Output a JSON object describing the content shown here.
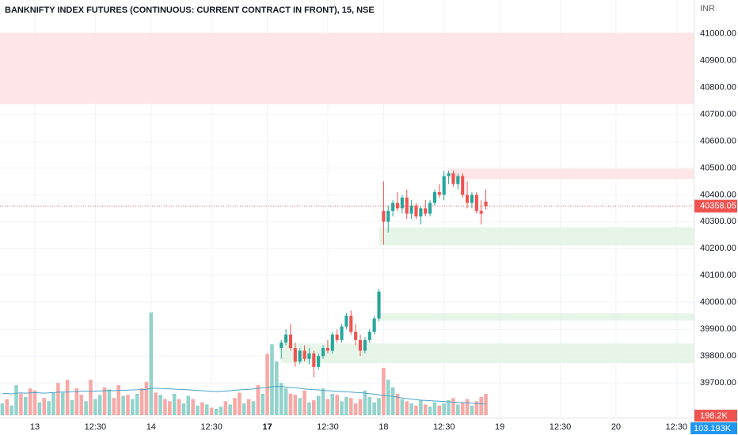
{
  "chart_data": {
    "type": "candlestick",
    "title": "BANKNIFTY INDEX FUTURES (CONTINUOUS: CURRENT CONTRACT IN FRONT), 15, NSE",
    "currency": "INR",
    "ylim": [
      39580,
      41125
    ],
    "yticks": [
      {
        "value": 41000,
        "label": "41000.00"
      },
      {
        "value": 40900,
        "label": "40900.00"
      },
      {
        "value": 40800,
        "label": "40800.00"
      },
      {
        "value": 40700,
        "label": "40700.00"
      },
      {
        "value": 40600,
        "label": "40600.00"
      },
      {
        "value": 40500,
        "label": "40500.00"
      },
      {
        "value": 40400,
        "label": "40400.00"
      },
      {
        "value": 40300,
        "label": "40300.00"
      },
      {
        "value": 40200,
        "label": "40200.00"
      },
      {
        "value": 40100,
        "label": "40100.00"
      },
      {
        "value": 40000,
        "label": "40000.00"
      },
      {
        "value": 39900,
        "label": "39900.00"
      },
      {
        "value": 39800,
        "label": "39800.00"
      },
      {
        "value": 39700,
        "label": "39700.00"
      }
    ],
    "xlim": [
      -0.5,
      148.7
    ],
    "xticks": [
      {
        "value": 7,
        "label": "13"
      },
      {
        "value": 20,
        "label": "12:30"
      },
      {
        "value": 32,
        "label": "14"
      },
      {
        "value": 45,
        "label": "12:30"
      },
      {
        "value": 57,
        "label": "17"
      },
      {
        "value": 70,
        "label": "12:30"
      },
      {
        "value": 82,
        "label": "18"
      },
      {
        "value": 95,
        "label": "12:30"
      },
      {
        "value": 107,
        "label": "19"
      },
      {
        "value": 120,
        "label": "12:30"
      },
      {
        "value": 132,
        "label": "20"
      },
      {
        "value": 145,
        "label": "12:30"
      }
    ],
    "grid": true,
    "up_color": "#26a69a",
    "down_color": "#ef5350",
    "candle_start": 60,
    "candles": {
      "open": [
        39830,
        39850,
        39880,
        39830,
        39780,
        39820,
        39790,
        39810,
        39760,
        39800,
        39830,
        39820,
        39880,
        39860,
        39910,
        39950,
        39890,
        39860,
        39820,
        39860,
        39890,
        39940,
        40340,
        40300,
        40340,
        40370,
        40350,
        40390,
        40330,
        40360,
        40320,
        40350,
        40330,
        40370,
        40410,
        40400,
        40470,
        40480,
        40440,
        40470,
        40400,
        40370,
        40400,
        40340,
        40375
      ],
      "high": [
        39860,
        39900,
        39920,
        39850,
        39830,
        39840,
        39830,
        39820,
        39810,
        39840,
        39860,
        39890,
        39900,
        39920,
        39960,
        39970,
        39920,
        39880,
        39870,
        39900,
        39950,
        40050,
        40450,
        40360,
        40380,
        40410,
        40400,
        40420,
        40380,
        40370,
        40360,
        40380,
        40380,
        40420,
        40440,
        40490,
        40490,
        40490,
        40480,
        40480,
        40450,
        40410,
        40410,
        40380,
        40420
      ],
      "low": [
        39790,
        39840,
        39820,
        39760,
        39770,
        39780,
        39770,
        39720,
        39750,
        39790,
        39810,
        39810,
        39850,
        39850,
        39900,
        39880,
        39840,
        39800,
        39810,
        39850,
        39880,
        39930,
        40215,
        40260,
        40320,
        40340,
        40330,
        40310,
        40310,
        40310,
        40290,
        40320,
        40320,
        40360,
        40390,
        40380,
        40440,
        40430,
        40420,
        40390,
        40350,
        40350,
        40330,
        40290,
        40345
      ],
      "close": [
        39850,
        39880,
        39830,
        39780,
        39820,
        39790,
        39810,
        39760,
        39800,
        39830,
        39820,
        39880,
        39860,
        39910,
        39950,
        39890,
        39860,
        39820,
        39860,
        39890,
        39940,
        40040,
        40300,
        40340,
        40370,
        40350,
        40390,
        40330,
        40360,
        40320,
        40350,
        40330,
        40370,
        40410,
        40400,
        40470,
        40480,
        40440,
        40470,
        40400,
        40370,
        40400,
        40340,
        40330,
        40358.05
      ]
    },
    "last_price": {
      "value": 40358.05,
      "label": "40358.05"
    },
    "zones": [
      {
        "low": 40738,
        "high": 41003,
        "start": -0.5,
        "color": "#ffe0e3"
      },
      {
        "low": 40459,
        "high": 40497,
        "start": 96,
        "color": "#ffe0e3"
      },
      {
        "low": 40212,
        "high": 40279,
        "start": 81,
        "color": "#e2f3e4"
      },
      {
        "low": 39932,
        "high": 39959,
        "start": 81,
        "color": "#e2f3e4"
      },
      {
        "low": 39774,
        "high": 39847,
        "start": 60,
        "color": "#e2f3e4"
      }
    ],
    "volume": {
      "ylim": [
        0,
        1000
      ],
      "up_color": "#93d3cc",
      "down_color": "#f7a9a7",
      "ma_color": "#4aa3c9",
      "values": [
        110,
        150,
        90,
        280,
        200,
        170,
        250,
        230,
        120,
        160,
        130,
        210,
        300,
        210,
        330,
        140,
        250,
        190,
        130,
        330,
        150,
        190,
        260,
        240,
        160,
        280,
        180,
        190,
        150,
        200,
        250,
        310,
        955,
        210,
        190,
        150,
        130,
        200,
        150,
        110,
        180,
        150,
        90,
        120,
        100,
        70,
        60,
        80,
        130,
        100,
        160,
        210,
        110,
        150,
        130,
        280,
        200,
        570,
        660,
        500,
        300,
        250,
        200,
        190,
        160,
        230,
        120,
        140,
        180,
        250,
        150,
        200,
        190,
        130,
        170,
        160,
        110,
        150,
        230,
        170,
        120,
        160,
        440,
        330,
        260,
        200,
        150,
        130,
        110,
        90,
        140,
        100,
        80,
        120,
        90,
        110,
        140,
        160,
        100,
        120,
        150,
        90,
        130,
        170,
        198.2
      ],
      "up": [
        1,
        0,
        1,
        1,
        0,
        1,
        0,
        0,
        1,
        0,
        1,
        1,
        0,
        1,
        0,
        1,
        0,
        0,
        1,
        0,
        1,
        1,
        0,
        1,
        0,
        0,
        1,
        0,
        1,
        1,
        0,
        0,
        1,
        0,
        1,
        0,
        0,
        1,
        0,
        1,
        1,
        0,
        1,
        0,
        1,
        0,
        1,
        1,
        0,
        1,
        0,
        0,
        1,
        0,
        1,
        0,
        1,
        0,
        1,
        1,
        1,
        1,
        0,
        0,
        1,
        0,
        1,
        0,
        1,
        1,
        0,
        1,
        0,
        1,
        1,
        0,
        0,
        0,
        1,
        1,
        1,
        1,
        0,
        1,
        1,
        0,
        1,
        0,
        1,
        0,
        1,
        0,
        1,
        1,
        0,
        1,
        1,
        0,
        1,
        0,
        0,
        1,
        0,
        0,
        0
      ],
      "ma": [
        200,
        202,
        198,
        205,
        207,
        205,
        208,
        210,
        208,
        205,
        207,
        210,
        214,
        216,
        215,
        218,
        220,
        222,
        225,
        223,
        224,
        226,
        228,
        230,
        228,
        230,
        232,
        233,
        235,
        236,
        238,
        240,
        250,
        250,
        248,
        247,
        245,
        243,
        240,
        238,
        236,
        233,
        230,
        228,
        225,
        222,
        220,
        222,
        225,
        228,
        232,
        235,
        238,
        240,
        245,
        250,
        255,
        260,
        265,
        268,
        266,
        262,
        258,
        255,
        250,
        245,
        240,
        238,
        235,
        230,
        228,
        225,
        222,
        220,
        218,
        215,
        212,
        210,
        205,
        200,
        195,
        190,
        185,
        180,
        175,
        168,
        160,
        155,
        150,
        145,
        140,
        138,
        135,
        132,
        130,
        128,
        125,
        122,
        120,
        118,
        115,
        112,
        110,
        106,
        103.193
      ],
      "last_label": {
        "value": 198.2,
        "label": "198.2K"
      },
      "ma_label": {
        "value": 103.193,
        "label": "103.193K"
      }
    }
  }
}
